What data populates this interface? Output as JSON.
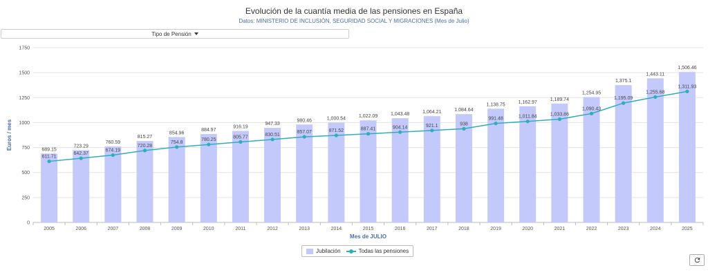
{
  "chart_data": {
    "type": "bar",
    "title": "Evolución de la cuantía media de las pensiones en España",
    "subtitle": "Datos: MINISTERIO DE INCLUSIÓN, SEGURIDAD SOCIAL Y MIGRACIONES (Mes de Julio)",
    "xlabel": "Mes de JULIO",
    "ylabel": "Euros / mes",
    "ylim": [
      0,
      1750
    ],
    "yticks": [
      0,
      250,
      500,
      750,
      1000,
      1250,
      1500,
      1750
    ],
    "grid": true,
    "legend_position": "bottom-center",
    "categories": [
      "2005",
      "2006",
      "2007",
      "2008",
      "2009",
      "2010",
      "2011",
      "2012",
      "2013",
      "2014",
      "2015",
      "2016",
      "2017",
      "2018",
      "2019",
      "2020",
      "2021",
      "2022",
      "2023",
      "2024",
      "2025"
    ],
    "series": [
      {
        "name": "Jubilación",
        "type": "bar",
        "color": "#c3c9fa",
        "values": [
          689.15,
          723.29,
          760.59,
          815.27,
          854.96,
          884.97,
          916.19,
          947.33,
          980.46,
          1000.54,
          1022.09,
          1043.48,
          1064.21,
          1084.64,
          1138.75,
          1162.97,
          1189.74,
          1254.95,
          1375.1,
          1443.11,
          1506.46
        ],
        "labels": [
          "689.15",
          "723.29",
          "760.59",
          "815.27",
          "854.96",
          "884.97",
          "916.19",
          "947.33",
          "980.46",
          "1,000.54",
          "1,022.09",
          "1,043.48",
          "1,064.21",
          "1,084.64",
          "1,138.75",
          "1,162.97",
          "1,189.74",
          "1,254.95",
          "1,375.1",
          "1,443.11",
          "1,506.46"
        ]
      },
      {
        "name": "Todas las pensiones",
        "type": "line",
        "color": "#2eaebd",
        "values": [
          611.71,
          642.37,
          674.19,
          720.28,
          754.8,
          780.25,
          805.77,
          830.51,
          857.07,
          871.52,
          887.41,
          904.14,
          921.1,
          938,
          991.48,
          1011.84,
          1033.86,
          1090.43,
          1195.09,
          1255.68,
          1311.93
        ],
        "labels": [
          "611.71",
          "642.37",
          "674.19",
          "720.28",
          "754.8",
          "780.25",
          "805.77",
          "830.51",
          "857.07",
          "871.52",
          "887.41",
          "904.14",
          "921.1",
          "938",
          "991.48",
          "1,011.84",
          "1,033.86",
          "1,090.43",
          "1,195.09",
          "1,255.68",
          "1,311.93"
        ]
      }
    ]
  },
  "controls": {
    "dropdown_label": "Tipo de Pensión",
    "refresh_icon": "refresh-icon"
  }
}
